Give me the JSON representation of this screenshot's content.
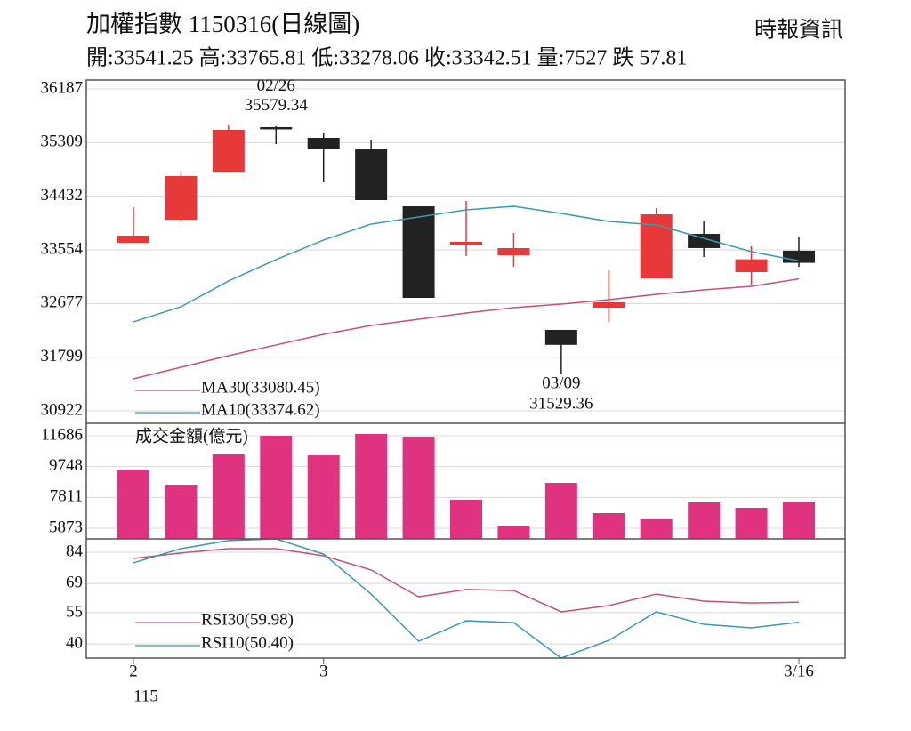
{
  "chart_data": [
    {
      "type": "candlestick",
      "title": "加權指數 1150316(日線圖)",
      "source": "時報資訊",
      "subtitle": "開:33541.25 高:33765.81 低:33278.06 收:33342.51 量:7527 跌 57.81",
      "categories": [
        "2",
        null,
        null,
        null,
        "3",
        null,
        null,
        null,
        null,
        null,
        null,
        null,
        null,
        null,
        "3/16"
      ],
      "era_label": "115",
      "open": [
        33671,
        34049,
        34834,
        35562,
        35387,
        35198,
        34267,
        33627,
        33467,
        32246,
        32609,
        33089,
        33816,
        33191,
        33541.25
      ],
      "high": [
        34253,
        34849,
        35605,
        35579.34,
        35460,
        35358,
        34267,
        34354,
        33831,
        32246,
        33220,
        34238,
        34035,
        33613,
        33765.81
      ],
      "low": [
        33671,
        34006,
        34834,
        35285,
        34660,
        34369,
        32769,
        33453,
        33278,
        31529.36,
        32377,
        33089,
        33438,
        32987,
        33278.06
      ],
      "close": [
        33787,
        34762,
        35518,
        35533,
        35198,
        34369,
        32769,
        33686,
        33584,
        32001,
        32697,
        34136,
        33584,
        33400,
        33342.51
      ],
      "up_color": "#e8393a",
      "down_color": "#222222",
      "annotations": [
        {
          "date": "02/26",
          "value": 35579.34
        },
        {
          "date": "03/09",
          "value": 31529.36
        }
      ],
      "series": [
        {
          "name": "MA30(33080.45)",
          "color": "#c4507c",
          "values": [
            31446,
            31635,
            31824,
            31999,
            32173,
            32318,
            32420,
            32522,
            32609,
            32667,
            32740,
            32827,
            32900,
            32958,
            33080.45
          ]
        },
        {
          "name": "MA10(33374.62)",
          "color": "#3a9bb0",
          "values": [
            32377,
            32624,
            33046,
            33395,
            33715,
            33977,
            34093,
            34209,
            34267,
            34151,
            34020,
            33962,
            33744,
            33526,
            33374.62
          ]
        }
      ],
      "ylim": [
        30922,
        36187
      ],
      "yticks": [
        30922,
        31799,
        32677,
        33554,
        34432,
        35309,
        36187
      ],
      "grid": true
    },
    {
      "type": "bar",
      "title": "成交金額(億元)",
      "values": [
        9560,
        8610,
        10510,
        11686,
        10455,
        11798,
        11630,
        7662,
        6040,
        8722,
        6823,
        6432,
        7494,
        7159,
        7527
      ],
      "color": "#e0337f",
      "ylim": [
        5202,
        12413
      ],
      "yticks": [
        5873,
        7811,
        9748,
        11686
      ],
      "grid": true
    },
    {
      "type": "line",
      "series": [
        {
          "name": "RSI30(59.98)",
          "color": "#c4507c",
          "values": [
            81.0,
            83.6,
            85.7,
            85.7,
            82.3,
            75.5,
            62.6,
            66.1,
            65.6,
            55.4,
            58.4,
            63.9,
            60.5,
            59.6,
            59.98
          ]
        },
        {
          "name": "RSI10(50.40)",
          "color": "#3a9bb0",
          "values": [
            78.9,
            85.7,
            89.6,
            90.4,
            83.1,
            63.9,
            41.3,
            51.1,
            50.2,
            33.2,
            41.7,
            55.4,
            49.4,
            47.7,
            50.4
          ]
        }
      ],
      "ylim": [
        33.2,
        90.4
      ],
      "yticks": [
        40,
        55,
        69,
        84
      ],
      "grid": true
    }
  ]
}
